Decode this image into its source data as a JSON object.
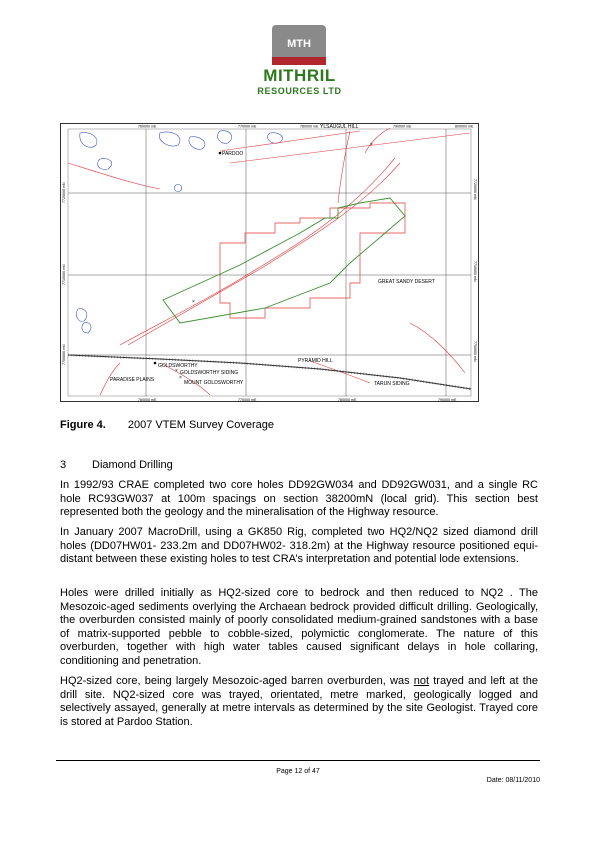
{
  "header": {
    "logo_text": "MTH",
    "brand_line1": "MITHRIL",
    "brand_line2": "RESOURCES LTD"
  },
  "map": {
    "top_ticks": [
      "760000 mE",
      "770000 mE",
      "780000 mE",
      "790000 mE",
      "800000 mE"
    ],
    "left_ticks": [
      "7720000 mN",
      "7710000 mN",
      "7700000 mN"
    ],
    "right_ticks": [
      "7720000 mN",
      "7710000 mN",
      "7700000 mN"
    ],
    "bottom_ticks": [
      "760000 mE",
      "770000 mE",
      "780000 mE",
      "790000 mE"
    ],
    "labels": {
      "pardoo": "PARDOO",
      "yandagul_hill": "YLSAUGUL HILL",
      "great_sandy_desert": "GREAT SANDY DESERT",
      "goldsworthy": "GOLDSWORTHY",
      "goldsworthy_siding": "GOLDSWORTHY SIDING",
      "paradise_plains": "PARADISE PLAINS",
      "mount_goldsworthy": "MOUNT GOLDSWORTHY",
      "pyramid_hill": "PYRAMID HILL",
      "tarun_siding": "TARUN SIDING"
    }
  },
  "figure": {
    "number": "Figure 4.",
    "caption": "2007 VTEM Survey Coverage"
  },
  "section": {
    "number": "3",
    "title": "Diamond Drilling"
  },
  "paragraphs": [
    "In 1992/93 CRAE completed two core holes DD92GW034 and DD92GW031, and a single RC hole RC93GW037 at 100m spacings on section 38200mN (local grid). This section best represented both the geology and the mineralisation of the Highway resource.",
    "In January 2007 MacroDrill, using a GK850 Rig, completed two HQ2/NQ2 sized diamond drill holes (DD07HW01- 233.2m and DD07HW02- 318.2m) at the Highway resource positioned equi-distant between these existing holes to test CRA’s interpretation and potential lode extensions.",
    "Holes were drilled initially as HQ2-sized core to bedrock and then reduced to NQ2 . The Mesozoic-aged sediments overlying the Archaean bedrock provided difficult drilling. Geologically, the overburden consisted mainly of poorly consolidated medium-grained sandstones with a base of matrix-supported pebble to cobble-sized, polymictic conglomerate. The nature of this overburden, together with high water tables caused significant delays in hole collaring, conditioning and penetration.",
    {
      "before": "HQ2-sized core, being largely Mesozoic-aged barren overburden, was ",
      "underlined": "not",
      "after": " trayed and left at the drill site. NQ2-sized core was trayed, orientated, metre marked, geologically logged and selectively assayed, generally at metre intervals as determined by the site Geologist. Trayed core is stored at Pardoo Station."
    }
  ],
  "footer": {
    "page": "Page 12 of 47",
    "date": "Date: 08/11/2010"
  },
  "colors": {
    "brand_green": "#2d7a1e",
    "logo_gray": "#8a8a8a",
    "logo_red": "#b0262c",
    "tenement_red": "#e23a3a",
    "survey_green": "#3b8f2e",
    "water_blue": "#3b55c9",
    "grid_gray": "#555555"
  }
}
